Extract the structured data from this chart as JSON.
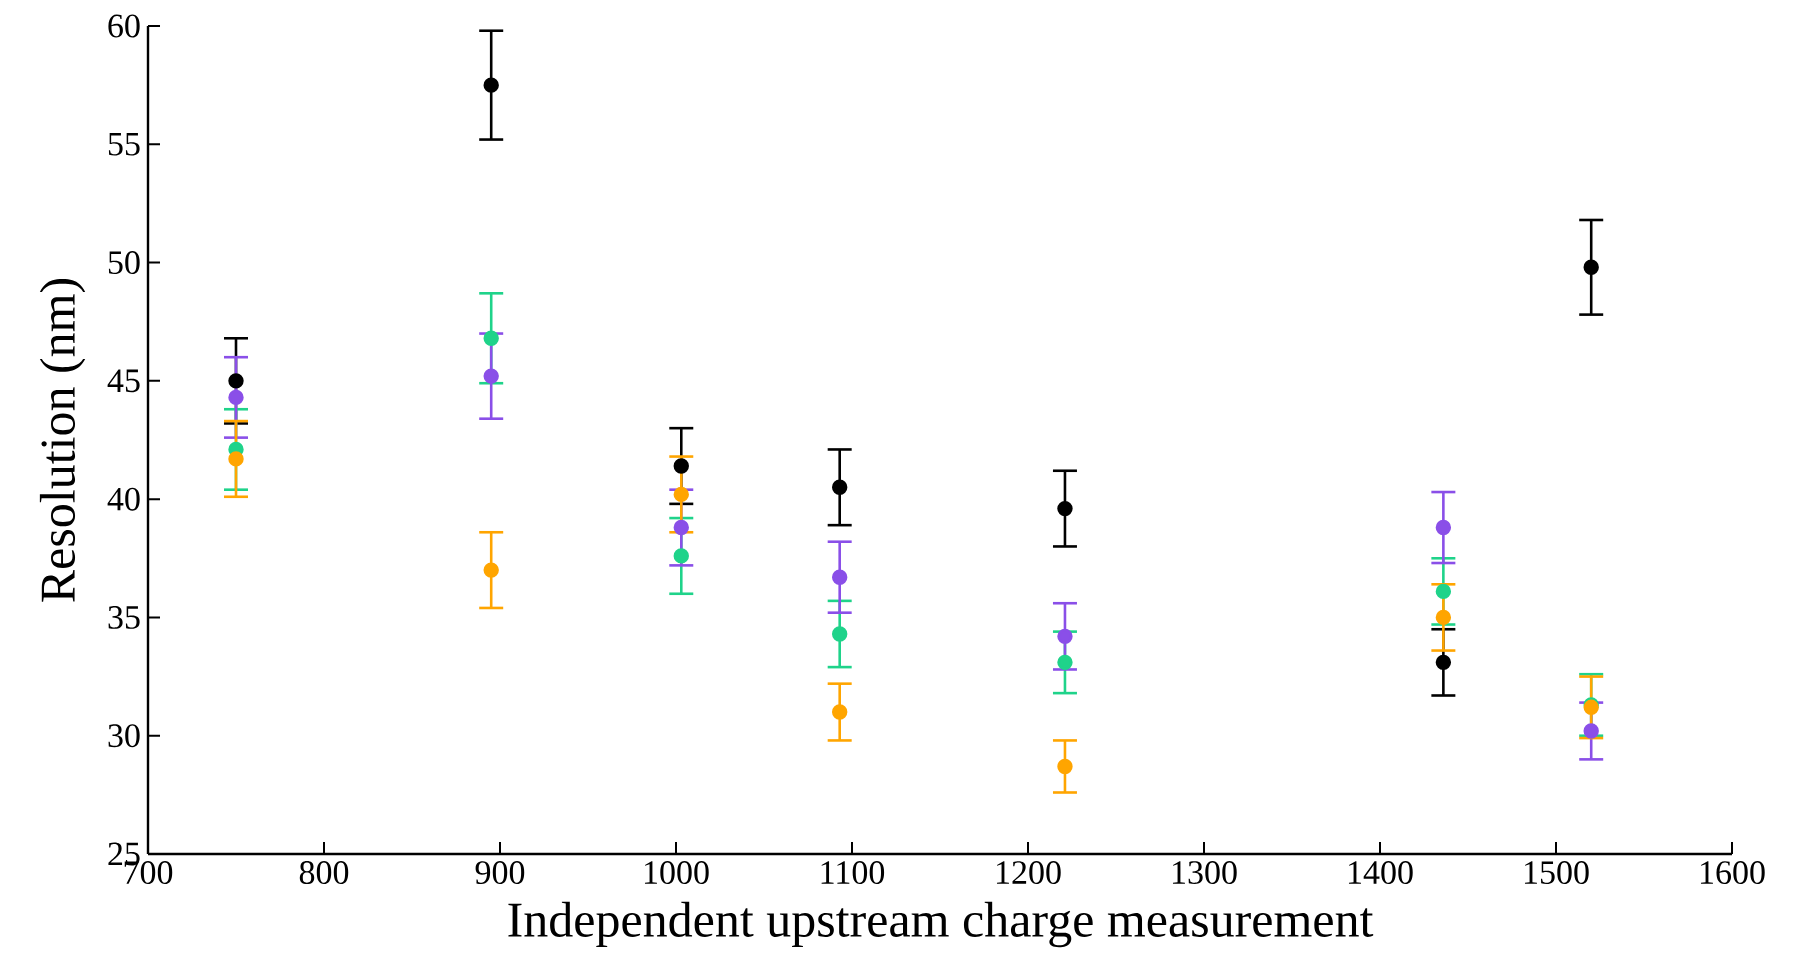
{
  "chart_data": {
    "type": "scatter",
    "xlabel": "Independent upstream charge measurement",
    "ylabel": "Resolution (nm)",
    "x": [
      750,
      895,
      1003,
      1093,
      1221,
      1436,
      1520
    ],
    "series": [
      {
        "color": "#000000",
        "values": [
          45.0,
          57.5,
          41.4,
          40.5,
          39.6,
          33.1,
          49.8
        ],
        "errors": [
          1.8,
          2.3,
          1.6,
          1.6,
          1.6,
          1.4,
          2.0
        ]
      },
      {
        "color": "#1fd38a",
        "values": [
          42.1,
          46.8,
          37.6,
          34.3,
          33.1,
          36.1,
          31.3
        ],
        "errors": [
          1.7,
          1.9,
          1.6,
          1.4,
          1.3,
          1.4,
          1.3
        ]
      },
      {
        "color": "#8a4fe8",
        "values": [
          44.3,
          45.2,
          38.8,
          36.7,
          34.2,
          38.8,
          30.2
        ],
        "errors": [
          1.7,
          1.8,
          1.6,
          1.5,
          1.4,
          1.5,
          1.2
        ]
      },
      {
        "color": "#ffa500",
        "values": [
          41.7,
          37.0,
          40.2,
          31.0,
          28.7,
          35.0,
          31.2
        ],
        "errors": [
          1.6,
          1.6,
          1.6,
          1.2,
          1.1,
          1.4,
          1.3
        ]
      }
    ],
    "xlim": [
      700,
      1600
    ],
    "ylim": [
      25,
      60
    ],
    "xticks": [
      700,
      800,
      900,
      1000,
      1100,
      1200,
      1300,
      1400,
      1500,
      1600
    ],
    "yticks": [
      25,
      30,
      35,
      40,
      45,
      50,
      55,
      60
    ],
    "grid": false,
    "marker": "circle"
  }
}
